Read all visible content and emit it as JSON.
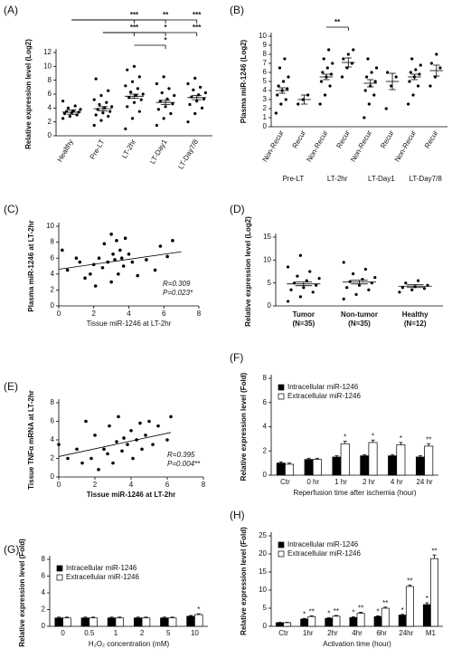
{
  "chart_data": [
    {
      "panel": "(A)",
      "type": "dot",
      "y_label": "Relative expression level (Log2)",
      "categories": [
        "Healthy",
        "Pre-LT",
        "LT-2hr",
        "LT-Day1",
        "LT-Day7/8"
      ],
      "points": [
        [
          2.5,
          2.8,
          3.0,
          3.2,
          3.3,
          3.4,
          3.5,
          3.6,
          3.8,
          4.0,
          4.3,
          5.0
        ],
        [
          1.5,
          2.2,
          2.8,
          3.0,
          3.3,
          3.5,
          3.8,
          4.0,
          4.2,
          4.5,
          4.8,
          5.2,
          5.8,
          6.5,
          8.2
        ],
        [
          1.0,
          2.5,
          3.5,
          4.2,
          4.8,
          5.2,
          5.5,
          5.8,
          6.0,
          6.3,
          6.8,
          7.2,
          7.8,
          8.5,
          9.5,
          10.0
        ],
        [
          1.5,
          2.5,
          3.2,
          3.8,
          4.2,
          4.6,
          5.0,
          5.3,
          5.8,
          6.2,
          6.8,
          7.5,
          8.5
        ],
        [
          2.0,
          3.2,
          4.0,
          4.5,
          5.0,
          5.3,
          5.6,
          5.9,
          6.2,
          6.6,
          7.0,
          7.5,
          8.3
        ]
      ],
      "means": [
        3.4,
        3.9,
        5.7,
        4.8,
        5.5
      ],
      "errors": [
        0.3,
        0.3,
        0.3,
        0.3,
        0.3
      ],
      "ylim": [
        0,
        12
      ],
      "yticks": [
        0,
        2,
        4,
        6,
        8,
        10,
        12
      ],
      "color": "#000000",
      "brackets": [
        {
          "text": "***",
          "from": 0,
          "to": 2
        },
        {
          "text": "**",
          "from": 0,
          "to": 3
        },
        {
          "text": "***",
          "from": 0,
          "to": 4
        },
        {
          "text": "***",
          "from": 1,
          "to": 2
        },
        {
          "text": "*",
          "from": 1,
          "to": 3
        },
        {
          "text": "***",
          "from": 1,
          "to": 4
        },
        {
          "text": "*",
          "from": 2,
          "to": 3
        }
      ]
    },
    {
      "panel": "(B)",
      "type": "dot",
      "y_label": "Plasma miR-1246 (Log2)",
      "categories": [
        "Non-Recur",
        "Recur",
        "Non-Recur",
        "Recur",
        "Non-Recur",
        "Recur",
        "Non-Recur",
        "Recur"
      ],
      "groups": [
        "Pre-LT",
        "LT-2hr",
        "LT-Day1",
        "LT-Day7/8"
      ],
      "points": [
        [
          1.5,
          2.5,
          3.0,
          3.5,
          4.0,
          4.2,
          4.5,
          5.0,
          5.5,
          6.5,
          7.5
        ],
        [
          2.5,
          3.0,
          3.5
        ],
        [
          2.5,
          3.5,
          4.5,
          5.0,
          5.5,
          5.8,
          6.0,
          6.5,
          7.0,
          7.5,
          8.5
        ],
        [
          5.5,
          6.5,
          7.0,
          7.5,
          8.0,
          8.5
        ],
        [
          1.0,
          2.5,
          3.5,
          4.0,
          4.5,
          5.0,
          5.5,
          6.0,
          6.5,
          7.5
        ],
        [
          2.0,
          4.5,
          5.5,
          6.0
        ],
        [
          2.5,
          3.5,
          4.5,
          5.0,
          5.5,
          5.8,
          6.0,
          6.3,
          6.8,
          7.5
        ],
        [
          4.5,
          5.5,
          6.5,
          7.0,
          8.0
        ]
      ],
      "means": [
        4.0,
        3.0,
        5.5,
        7.1,
        4.8,
        5.0,
        5.5,
        6.2
      ],
      "errors": [
        0.3,
        0.5,
        0.3,
        0.5,
        0.4,
        0.9,
        0.3,
        0.6
      ],
      "ylim": [
        0,
        10
      ],
      "yticks": [
        0,
        1,
        2,
        3,
        4,
        5,
        6,
        7,
        8,
        9,
        10
      ],
      "color": "#000000",
      "brackets": [
        {
          "text": "**",
          "from": 2,
          "to": 3
        }
      ]
    },
    {
      "panel": "(C)",
      "type": "scatter",
      "y_label": "Plasma miR-1246 at LT-2hr",
      "x_label": "Tissue miR-1246 at LT-2hr",
      "x": [
        0.2,
        0.5,
        1.0,
        1.2,
        1.5,
        1.8,
        2.0,
        2.1,
        2.3,
        2.5,
        2.6,
        2.8,
        3.0,
        3.0,
        3.1,
        3.2,
        3.3,
        3.4,
        3.5,
        3.6,
        3.7,
        3.8,
        4.0,
        4.2,
        4.5,
        5.0,
        5.5,
        5.8,
        6.2,
        6.5
      ],
      "y": [
        7.0,
        4.5,
        6.0,
        5.5,
        3.5,
        4.0,
        5.2,
        2.5,
        6.0,
        4.8,
        7.8,
        5.5,
        9.0,
        3.0,
        6.5,
        5.8,
        8.2,
        4.0,
        7.0,
        6.0,
        5.0,
        8.5,
        6.5,
        5.5,
        3.8,
        5.8,
        4.5,
        7.5,
        6.2,
        8.2
      ],
      "trend": {
        "x": [
          0,
          7
        ],
        "y": [
          4.6,
          6.8
        ]
      },
      "xlim": [
        0,
        8
      ],
      "xticks": [
        0,
        2,
        4,
        6,
        8
      ],
      "ylim": [
        0,
        10
      ],
      "yticks": [
        0,
        2,
        4,
        6,
        8,
        10
      ],
      "color": "#000000",
      "annotations": [
        "R=0.309",
        "P=0.023*"
      ]
    },
    {
      "panel": "(D)",
      "type": "dot",
      "y_label": "Relative expression level (Log2)",
      "categories": [
        "Tumor",
        "Non-tumor",
        "Healthy"
      ],
      "n_labels": [
        "(N=35)",
        "(N=35)",
        "(N=12)"
      ],
      "points": [
        [
          1.0,
          2.0,
          3.0,
          3.5,
          4.0,
          4.5,
          5.0,
          5.5,
          6.0,
          6.5,
          7.5,
          8.5,
          11.0
        ],
        [
          1.5,
          2.5,
          3.5,
          4.0,
          4.5,
          5.0,
          5.3,
          5.8,
          6.2,
          7.0,
          8.0,
          9.5
        ],
        [
          3.0,
          3.5,
          3.8,
          4.0,
          4.2,
          4.5,
          5.0,
          5.5
        ]
      ],
      "means": [
        4.8,
        5.2,
        4.3
      ],
      "errors": [
        0.4,
        0.4,
        0.3
      ],
      "ylim": [
        0,
        15
      ],
      "yticks": [
        0,
        5,
        10,
        15
      ],
      "color": "#000000"
    },
    {
      "panel": "(E)",
      "type": "scatter",
      "y_label": "Tissue TNFα mRNA at LT-2hr",
      "x_label": "Tissue miR-1246 at LT-2hr",
      "x": [
        0,
        0.5,
        1.0,
        1.3,
        1.5,
        1.8,
        2.0,
        2.2,
        2.5,
        2.7,
        2.8,
        3.0,
        3.2,
        3.3,
        3.5,
        3.6,
        3.8,
        4.0,
        4.1,
        4.3,
        4.5,
        4.6,
        4.8,
        5.0,
        5.2,
        5.5,
        6.0,
        6.2
      ],
      "y": [
        3.5,
        2.0,
        3.0,
        1.5,
        6.0,
        2.0,
        4.5,
        0.8,
        3.0,
        2.5,
        5.5,
        1.5,
        3.8,
        6.5,
        2.8,
        4.2,
        3.5,
        5.0,
        2.0,
        4.0,
        5.8,
        3.0,
        4.5,
        6.0,
        3.5,
        5.5,
        4.0,
        6.5
      ],
      "trend": {
        "x": [
          0,
          6.2
        ],
        "y": [
          2.2,
          4.8
        ]
      },
      "xlim": [
        0,
        8
      ],
      "xticks": [
        0,
        2,
        4,
        6,
        8
      ],
      "ylim": [
        0,
        8
      ],
      "yticks": [
        0,
        2,
        4,
        6,
        8
      ],
      "color": "#000000",
      "annotations": [
        "R=0.395",
        "P=0.004**"
      ]
    },
    {
      "panel": "(F)",
      "type": "bar",
      "y_label": "Relative expression level (Fold)",
      "x_label": "Reperfusion time after ischemia (hour)",
      "categories": [
        "Ctr",
        "0 hr",
        "1 hr",
        "2 hr",
        "4 hr",
        "24 hr"
      ],
      "series": [
        {
          "name": "Intracellular miR-1246",
          "color": "#000000",
          "values": [
            1.0,
            1.3,
            1.5,
            1.6,
            1.6,
            1.5
          ],
          "errors": [
            0.1,
            0.1,
            0.1,
            0.1,
            0.1,
            0.1
          ],
          "stars": [
            null,
            null,
            null,
            null,
            null,
            null
          ]
        },
        {
          "name": "Extracellular miR-1246",
          "color": "#ffffff",
          "values": [
            0.9,
            1.3,
            2.6,
            2.7,
            2.5,
            2.4
          ],
          "errors": [
            0.1,
            0.1,
            0.2,
            0.2,
            0.2,
            0.2
          ],
          "stars": [
            null,
            null,
            "*",
            "*",
            "*",
            "**"
          ]
        }
      ],
      "ylim": [
        0,
        8
      ],
      "yticks": [
        0,
        2,
        4,
        6,
        8
      ],
      "legend": "top-left"
    },
    {
      "panel": "(G)",
      "type": "bar",
      "y_label": "Relative expression level (Fold)",
      "x_label": "H₂O₂ concentration (mM)",
      "categories": [
        "0",
        "0.5",
        "1",
        "2",
        "5",
        "10"
      ],
      "series": [
        {
          "name": "Intracellular miR-1246",
          "color": "#000000",
          "values": [
            1.0,
            1.0,
            1.0,
            1.0,
            1.0,
            1.2
          ],
          "errors": [
            0.1,
            0.1,
            0.1,
            0.1,
            0.1,
            0.1
          ],
          "stars": [
            null,
            null,
            null,
            null,
            null,
            null
          ]
        },
        {
          "name": "Extracellular miR-1246",
          "color": "#ffffff",
          "values": [
            1.0,
            1.0,
            1.0,
            1.0,
            1.0,
            1.4
          ],
          "errors": [
            0.1,
            0.1,
            0.1,
            0.1,
            0.1,
            0.1
          ],
          "stars": [
            null,
            null,
            null,
            null,
            null,
            "*"
          ]
        }
      ],
      "ylim": [
        0,
        8
      ],
      "yticks": [
        0,
        2,
        4,
        6,
        8
      ],
      "legend": "top-left"
    },
    {
      "panel": "(H)",
      "type": "bar",
      "y_label": "Relative expression level (Fold)",
      "x_label": "Activation time (hour)",
      "categories": [
        "Ctr",
        "1hr",
        "2hr",
        "4hr",
        "6hr",
        "24hr",
        "M1"
      ],
      "series": [
        {
          "name": "Intracellular miR-1246",
          "color": "#000000",
          "values": [
            1.0,
            2.0,
            2.2,
            2.4,
            2.7,
            3.1,
            6.0
          ],
          "errors": [
            0.1,
            0.2,
            0.2,
            0.2,
            0.2,
            0.2,
            0.5
          ],
          "stars": [
            null,
            "*",
            "*",
            "*",
            "*",
            "*",
            "*"
          ]
        },
        {
          "name": "Extracellular miR-1246",
          "color": "#ffffff",
          "values": [
            1.0,
            2.7,
            2.8,
            3.6,
            5.0,
            11.0,
            18.7
          ],
          "errors": [
            0.1,
            0.2,
            0.2,
            0.3,
            0.3,
            0.4,
            1.0
          ],
          "stars": [
            null,
            "**",
            "**",
            "**",
            "**",
            "**",
            "**"
          ]
        }
      ],
      "ylim": [
        0,
        25
      ],
      "yticks": [
        0,
        5,
        10,
        15,
        20,
        25
      ],
      "legend": "top-left"
    }
  ]
}
